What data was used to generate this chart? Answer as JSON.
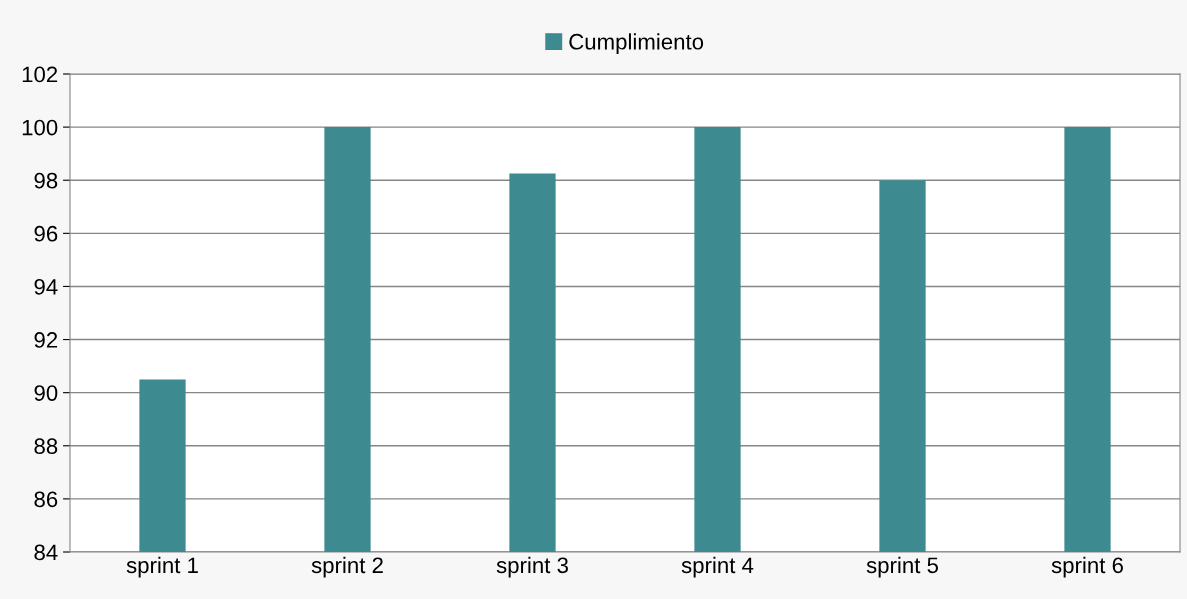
{
  "chart_data": {
    "type": "bar",
    "categories": [
      "sprint 1",
      "sprint 2",
      "sprint 3",
      "sprint 4",
      "sprint 5",
      "sprint 6"
    ],
    "series": [
      {
        "name": "Cumplimiento",
        "color": "#3d8b91",
        "values": [
          90.5,
          100,
          98.25,
          100,
          98,
          100
        ]
      }
    ],
    "ylim": [
      84,
      102
    ],
    "yticks": [
      84,
      86,
      88,
      90,
      92,
      94,
      96,
      98,
      100,
      102
    ],
    "grid": "y",
    "legend": "top"
  }
}
